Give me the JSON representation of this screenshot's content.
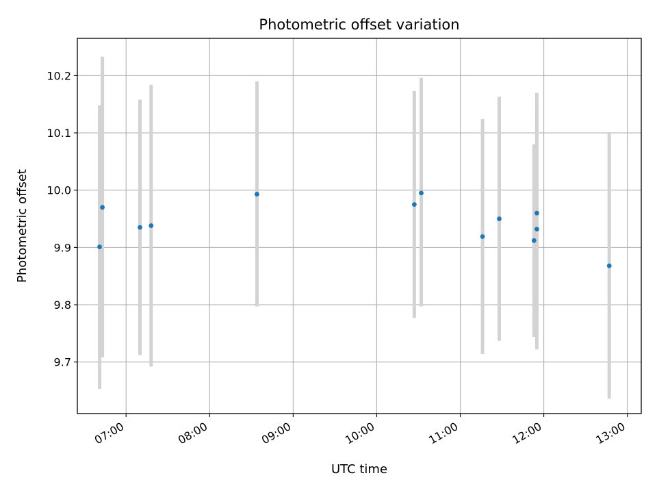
{
  "chart_data": {
    "type": "scatter",
    "title": "Photometric offset variation",
    "xlabel": "UTC time",
    "ylabel": "Photometric offset",
    "grid": true,
    "legend": "none",
    "colors": {
      "point": "#1f77b4",
      "errorbar": "#d3d3d3",
      "grid": "#b0b0b0"
    },
    "xlim": [
      "06:25",
      "13:10"
    ],
    "ylim": [
      9.61,
      10.265
    ],
    "x_ticks": [
      "07:00",
      "08:00",
      "09:00",
      "10:00",
      "11:00",
      "12:00",
      "13:00"
    ],
    "y_ticks": [
      "9.7",
      "9.8",
      "9.9",
      "10.0",
      "10.1",
      "10.2"
    ],
    "points": [
      {
        "t": "06:41",
        "y": 9.901,
        "err_low": 9.653,
        "err_high": 10.148
      },
      {
        "t": "06:43",
        "y": 9.97,
        "err_low": 9.708,
        "err_high": 10.233
      },
      {
        "t": "07:10",
        "y": 9.935,
        "err_low": 9.712,
        "err_high": 10.158
      },
      {
        "t": "07:18",
        "y": 9.938,
        "err_low": 9.692,
        "err_high": 10.184
      },
      {
        "t": "08:34",
        "y": 9.993,
        "err_low": 9.797,
        "err_high": 10.19
      },
      {
        "t": "10:27",
        "y": 9.975,
        "err_low": 9.777,
        "err_high": 10.173
      },
      {
        "t": "10:32",
        "y": 9.995,
        "err_low": 9.797,
        "err_high": 10.196
      },
      {
        "t": "11:16",
        "y": 9.919,
        "err_low": 9.714,
        "err_high": 10.124
      },
      {
        "t": "11:28",
        "y": 9.95,
        "err_low": 9.737,
        "err_high": 10.163
      },
      {
        "t": "11:53",
        "y": 9.912,
        "err_low": 9.744,
        "err_high": 10.08
      },
      {
        "t": "11:55",
        "y": 9.96,
        "err_low": 9.75,
        "err_high": 10.17
      },
      {
        "t": "11:55",
        "y": 9.932,
        "err_low": 9.722,
        "err_high": 10.142
      },
      {
        "t": "12:47",
        "y": 9.868,
        "err_low": 9.636,
        "err_high": 10.1
      }
    ]
  }
}
